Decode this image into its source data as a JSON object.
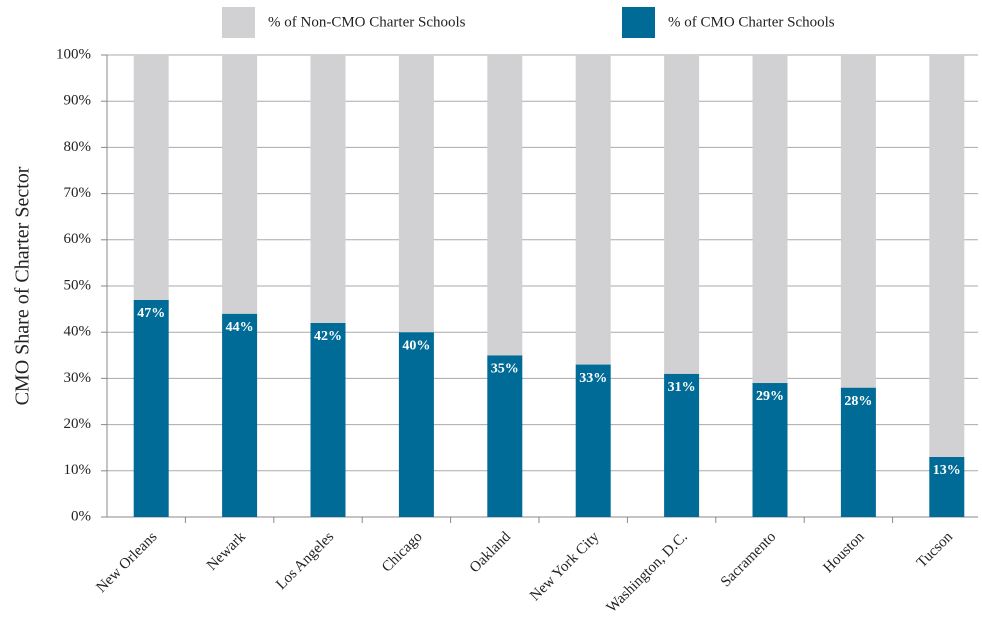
{
  "chart_data": {
    "type": "stacked_bar",
    "y_axis_label": "CMO Share of Charter Sector",
    "categories": [
      "New Orleans",
      "Newark",
      "Los Angeles",
      "Chicago",
      "Oakland",
      "New York City",
      "Washington, D.C.",
      "Sacramento",
      "Houston",
      "Tucson"
    ],
    "series": [
      {
        "name": "% of CMO Charter Schools",
        "color": "#006b96",
        "values": [
          47,
          44,
          42,
          40,
          35,
          33,
          31,
          29,
          28,
          13
        ],
        "value_labels": [
          "47%",
          "44%",
          "42%",
          "40%",
          "35%",
          "33%",
          "31%",
          "29%",
          "28%",
          "13%"
        ]
      },
      {
        "name": "% of Non-CMO Charter Schools",
        "color": "#d1d1d3",
        "values": [
          53,
          56,
          58,
          60,
          65,
          67,
          69,
          71,
          72,
          87
        ]
      }
    ],
    "ylim": [
      0,
      100
    ],
    "yticks": [
      {
        "value": 0,
        "label": "0%"
      },
      {
        "value": 10,
        "label": "10%"
      },
      {
        "value": 20,
        "label": "20%"
      },
      {
        "value": 30,
        "label": "30%"
      },
      {
        "value": 40,
        "label": "40%"
      },
      {
        "value": 50,
        "label": "50%"
      },
      {
        "value": 60,
        "label": "60%"
      },
      {
        "value": 70,
        "label": "70%"
      },
      {
        "value": 80,
        "label": "80%"
      },
      {
        "value": 90,
        "label": "90%"
      },
      {
        "value": 100,
        "label": "100%"
      }
    ],
    "grid": true,
    "legend": "top"
  }
}
